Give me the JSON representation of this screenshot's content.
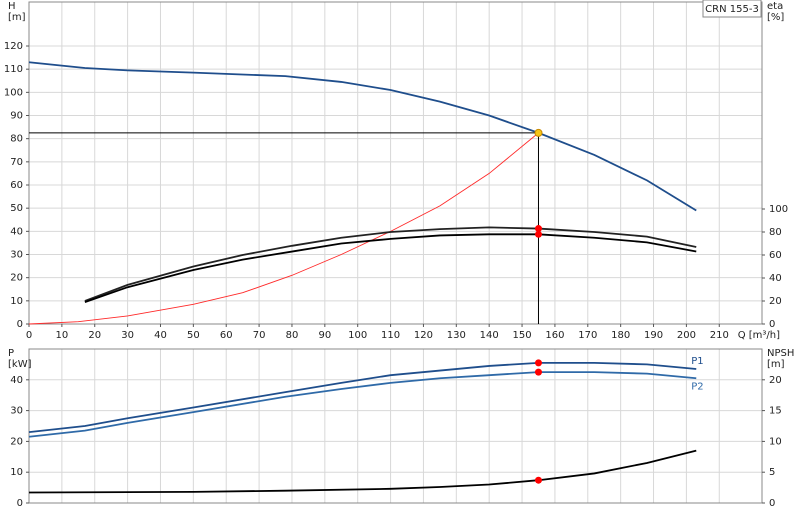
{
  "chart_data": [
    {
      "type": "line",
      "annotation": "CRN 155-3",
      "ylabel": [
        "H",
        "[m]"
      ],
      "y2label": [
        "eta",
        "[%]"
      ],
      "xlabel": "Q [m³/h]",
      "xlim": [
        0,
        223
      ],
      "xticks": [
        0,
        10,
        20,
        30,
        40,
        50,
        60,
        70,
        80,
        90,
        100,
        110,
        120,
        130,
        140,
        150,
        160,
        170,
        180,
        190,
        200,
        210
      ],
      "ylim": [
        0,
        139
      ],
      "yticks": [
        0,
        10,
        20,
        30,
        40,
        50,
        60,
        70,
        80,
        90,
        100,
        110,
        120
      ],
      "y2lim": [
        0,
        280
      ],
      "y2ticks": [
        0,
        20,
        40,
        60,
        80,
        100
      ],
      "grid": true,
      "series": [
        {
          "color": "#1f4e8c",
          "axis": "y",
          "x": [
            0,
            17,
            30,
            50,
            78,
            95,
            110,
            125,
            140,
            155,
            172,
            188,
            203
          ],
          "values": [
            113,
            110.5,
            109.5,
            108.5,
            107,
            104.5,
            101,
            96,
            90,
            82.5,
            73,
            62,
            49
          ]
        },
        {
          "color": "#ff2a2a",
          "axis": "y",
          "x": [
            0,
            15,
            30,
            50,
            65,
            80,
            95,
            110,
            125,
            140,
            155
          ],
          "values": [
            0,
            1,
            3.5,
            8.5,
            13.5,
            21,
            30,
            40,
            51,
            65,
            82.5
          ]
        },
        {
          "color": "#222222",
          "axis": "y2",
          "x": [
            17,
            30,
            50,
            65,
            80,
            95,
            110,
            125,
            140,
            155,
            172,
            188,
            203
          ],
          "values": [
            20,
            34,
            50,
            60,
            68,
            75,
            80,
            82.5,
            84,
            83,
            80,
            76,
            67
          ]
        },
        {
          "color": "#000000",
          "axis": "y2",
          "x": [
            17,
            30,
            50,
            65,
            80,
            95,
            110,
            125,
            140,
            155,
            172,
            188,
            203
          ],
          "values": [
            19,
            32,
            47,
            56,
            63,
            70,
            74,
            77,
            78,
            78,
            75,
            71,
            63
          ]
        }
      ],
      "markers": [
        {
          "x": 155,
          "y": 82.5,
          "axis": "y",
          "color": "#f5c518",
          "guides": true
        },
        {
          "x": 155,
          "y": 83,
          "axis": "y2",
          "color": "#ff0000"
        },
        {
          "x": 155,
          "y": 78,
          "axis": "y2",
          "color": "#ff0000"
        }
      ]
    },
    {
      "type": "line",
      "ylabel": [
        "P",
        "[kW]"
      ],
      "y2label": [
        "NPSH",
        "[m]"
      ],
      "xlim": [
        0,
        223
      ],
      "ylim": [
        0,
        50
      ],
      "yticks": [
        0,
        10,
        20,
        30,
        40
      ],
      "y2lim": [
        0,
        25
      ],
      "y2ticks": [
        0,
        5,
        10,
        15,
        20
      ],
      "grid": true,
      "series": [
        {
          "name": "P1",
          "color": "#1f4e8c",
          "axis": "y",
          "x": [
            0,
            17,
            30,
            50,
            78,
            95,
            110,
            125,
            140,
            155,
            172,
            188,
            203
          ],
          "values": [
            23,
            25,
            27.5,
            31,
            36,
            39,
            41.5,
            43,
            44.5,
            45.5,
            45.5,
            45,
            43.5
          ]
        },
        {
          "name": "P2",
          "color": "#2f6aa8",
          "axis": "y",
          "x": [
            0,
            17,
            30,
            50,
            78,
            95,
            110,
            125,
            140,
            155,
            172,
            188,
            203
          ],
          "values": [
            21.5,
            23.5,
            26,
            29.5,
            34.5,
            37,
            39,
            40.5,
            41.5,
            42.5,
            42.5,
            42,
            40.5
          ]
        },
        {
          "color": "#000000",
          "axis": "y2",
          "x": [
            0,
            50,
            78,
            110,
            125,
            140,
            155,
            172,
            188,
            203
          ],
          "values": [
            1.7,
            1.8,
            2,
            2.3,
            2.6,
            3,
            3.7,
            4.8,
            6.5,
            8.5
          ]
        }
      ],
      "markers": [
        {
          "x": 155,
          "y": 45.5,
          "axis": "y",
          "color": "#ff0000"
        },
        {
          "x": 155,
          "y": 42.5,
          "axis": "y",
          "color": "#ff0000"
        },
        {
          "x": 155,
          "y": 3.7,
          "axis": "y2",
          "color": "#ff0000"
        }
      ]
    }
  ]
}
